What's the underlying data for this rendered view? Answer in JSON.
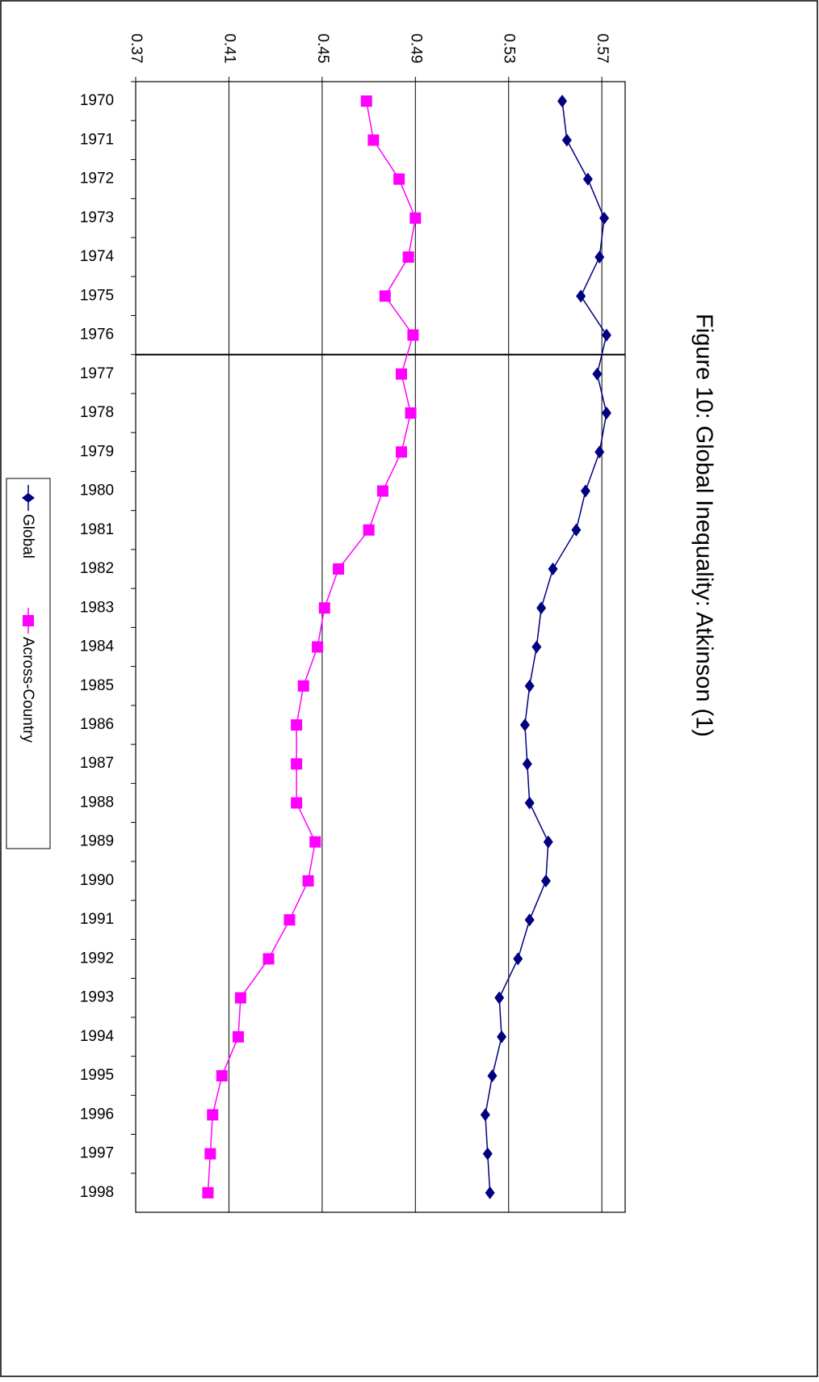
{
  "chart_data": {
    "type": "line",
    "orientation": "horizontal",
    "title": "Figure 10: Global Inequality: Atkinson (1)",
    "categories": [
      "1970",
      "1971",
      "1972",
      "1973",
      "1974",
      "1975",
      "1976",
      "1977",
      "1978",
      "1979",
      "1980",
      "1981",
      "1982",
      "1983",
      "1984",
      "1985",
      "1986",
      "1987",
      "1988",
      "1989",
      "1990",
      "1991",
      "1992",
      "1993",
      "1994",
      "1995",
      "1996",
      "1997",
      "1998"
    ],
    "series": [
      {
        "name": "Global",
        "color": "#000080",
        "marker": "diamond",
        "values": [
          0.553,
          0.555,
          0.564,
          0.571,
          0.569,
          0.561,
          0.572,
          0.568,
          0.572,
          0.569,
          0.563,
          0.559,
          0.549,
          0.544,
          0.542,
          0.539,
          0.537,
          0.538,
          0.539,
          0.547,
          0.546,
          0.539,
          0.534,
          0.526,
          0.527,
          0.523,
          0.52,
          0.521,
          0.522
        ]
      },
      {
        "name": "Across-Country",
        "color": "#ff00ff",
        "marker": "square",
        "values": [
          0.469,
          0.472,
          0.483,
          0.49,
          0.487,
          0.477,
          0.489,
          0.484,
          0.488,
          0.484,
          0.476,
          0.47,
          0.457,
          0.451,
          0.448,
          0.442,
          0.439,
          0.439,
          0.439,
          0.447,
          0.444,
          0.436,
          0.427,
          0.415,
          0.414,
          0.407,
          0.403,
          0.402,
          0.401
        ]
      }
    ],
    "ylim": [
      0.37,
      0.58
    ],
    "yticks": [
      0.37,
      0.41,
      0.45,
      0.49,
      0.53,
      0.57
    ],
    "grid": true,
    "divider_after": "1976",
    "legend": "left"
  }
}
